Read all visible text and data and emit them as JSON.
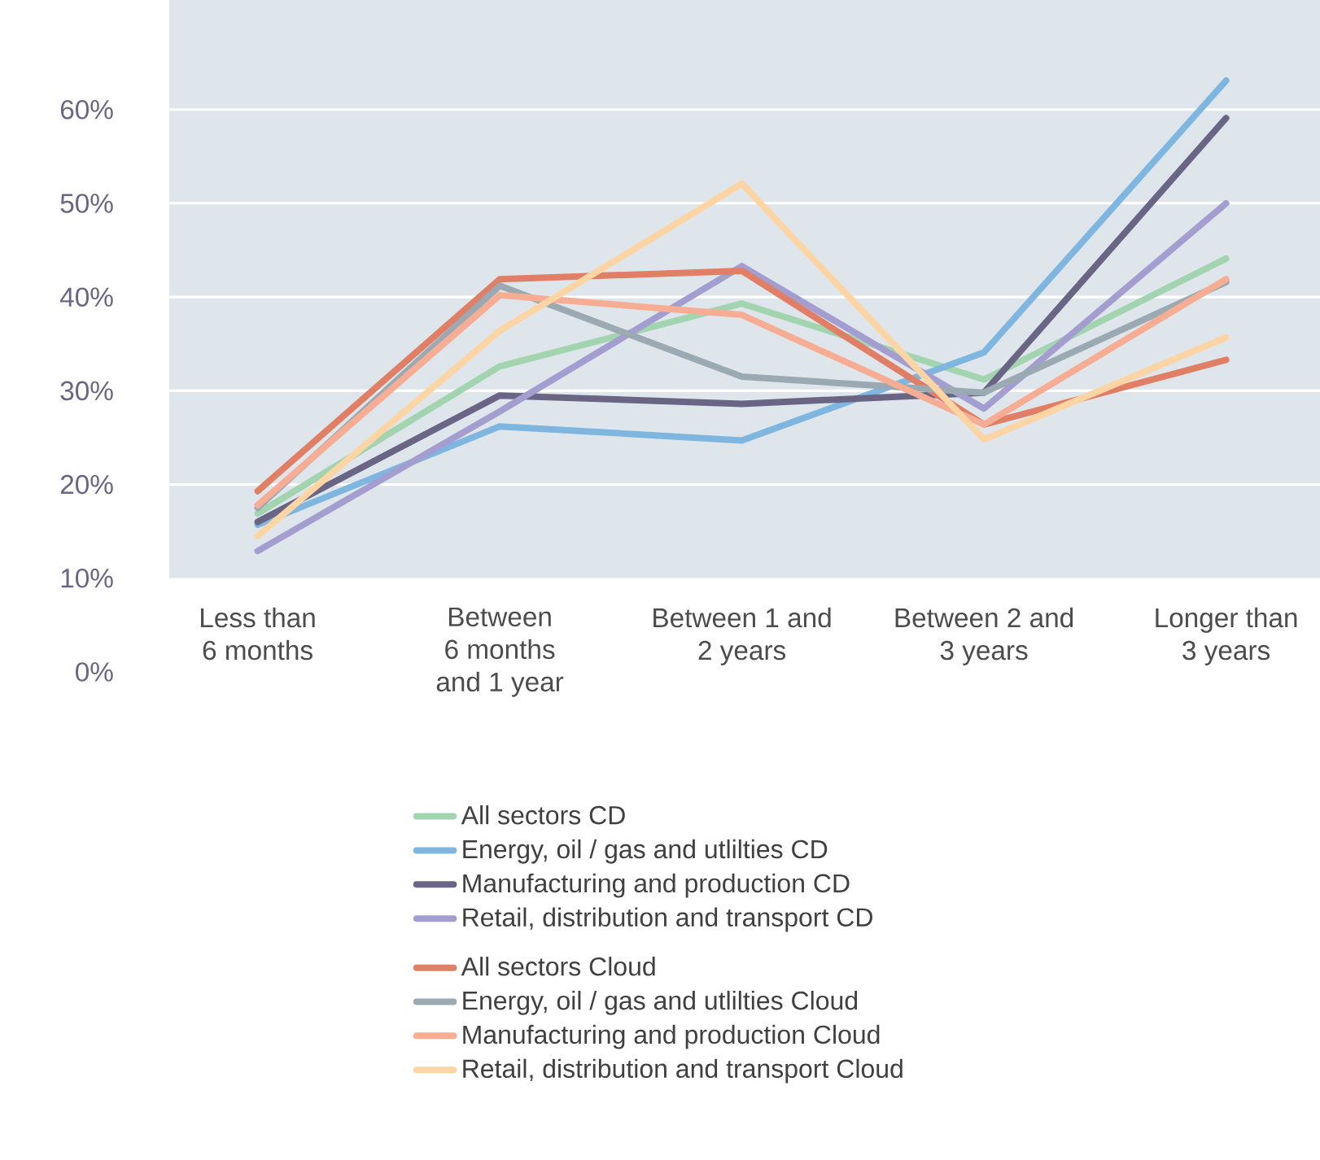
{
  "chart_data": {
    "type": "line",
    "categories": [
      "Less than\n6 months",
      "Between\n6 months\nand 1 year",
      "Between 1 and\n2 years",
      "Between 2 and\n3 years",
      "Longer than\n3 years"
    ],
    "series": [
      {
        "name": "All sectors CD",
        "color": "#a3d4b0",
        "values": [
          16.9,
          32.6,
          39.3,
          31.2,
          44.1
        ]
      },
      {
        "name": "Energy, oil / gas and utlilties CD",
        "color": "#7fb6e0",
        "values": [
          15.7,
          26.2,
          24.7,
          34.1,
          63.1
        ]
      },
      {
        "name": "Manufacturing and production CD",
        "color": "#6b6585",
        "values": [
          16.0,
          29.5,
          28.6,
          29.8,
          59.1
        ]
      },
      {
        "name": "Retail, distribution and transport CD",
        "color": "#a49dcf",
        "values": [
          12.9,
          27.8,
          43.3,
          28.1,
          50.0
        ]
      },
      {
        "name": "All sectors Cloud",
        "color": "#e07f66",
        "values": [
          19.3,
          41.9,
          42.8,
          26.4,
          33.3
        ]
      },
      {
        "name": "Energy, oil / gas and utlilties Cloud",
        "color": "#9aa9b2",
        "values": [
          17.5,
          41.2,
          31.5,
          29.8,
          41.6
        ]
      },
      {
        "name": "Manufacturing and production Cloud",
        "color": "#f7ad94",
        "values": [
          17.8,
          40.2,
          38.1,
          26.4,
          41.9
        ]
      },
      {
        "name": "Retail, distribution and transport Cloud",
        "color": "#fdd4a4",
        "values": [
          14.5,
          36.4,
          52.1,
          24.8,
          35.7
        ]
      }
    ],
    "ylim": [
      0,
      71.7
    ],
    "yticks": [
      {
        "value": 0,
        "label": "0%"
      },
      {
        "value": 10,
        "label": "10%"
      },
      {
        "value": 20,
        "label": "20%"
      },
      {
        "value": 30,
        "label": "30%"
      },
      {
        "value": 40,
        "label": "40%"
      },
      {
        "value": 50,
        "label": "50%"
      },
      {
        "value": 60,
        "label": "60%"
      }
    ],
    "bands": [
      {
        "axis": "y",
        "from": 10,
        "to": 71.7,
        "color": "#dfe6eb"
      }
    ],
    "grid": "y",
    "legend": "bottom",
    "marker": "none",
    "line_style": "solid"
  }
}
